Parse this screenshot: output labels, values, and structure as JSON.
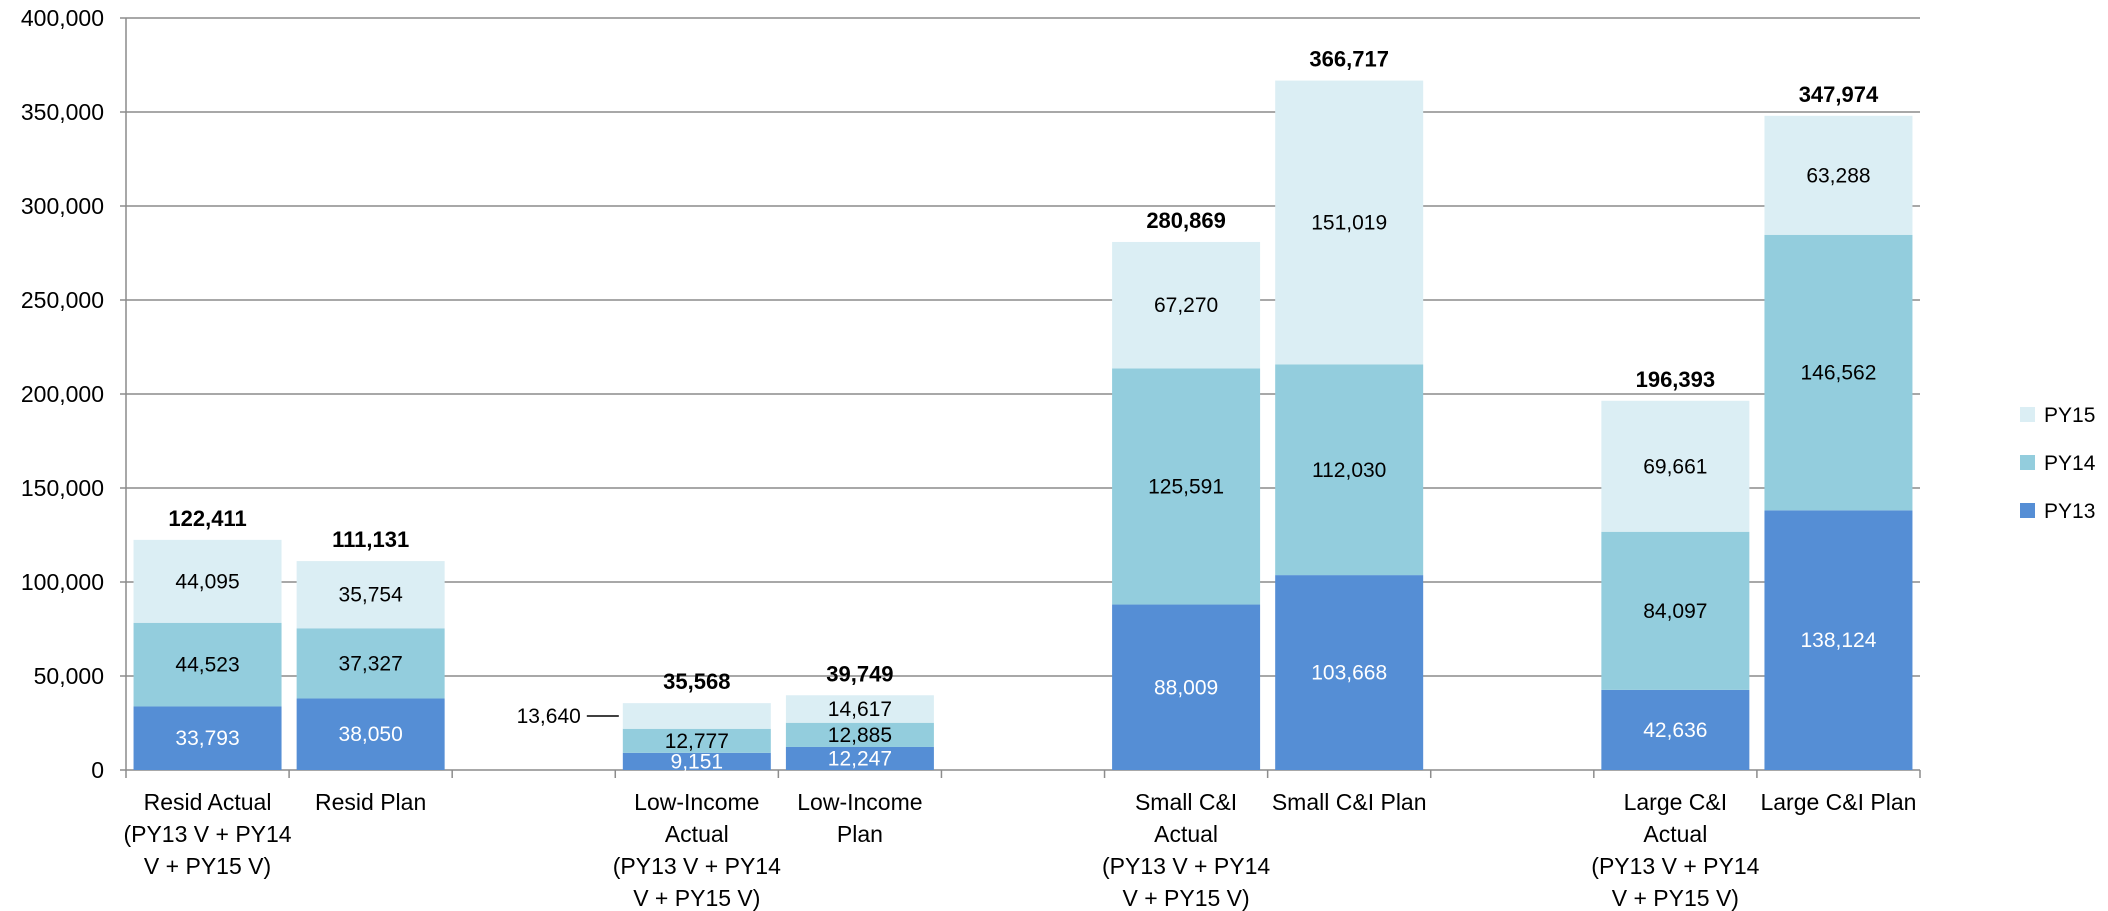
{
  "chart_data": {
    "type": "bar",
    "stacked": true,
    "title": "",
    "xlabel": "",
    "ylabel": "",
    "ylim": [
      0,
      400000
    ],
    "yticks": [
      0,
      50000,
      100000,
      150000,
      200000,
      250000,
      300000,
      350000,
      400000
    ],
    "ytick_labels": [
      "0",
      "50,000",
      "100,000",
      "150,000",
      "200,000",
      "250,000",
      "300,000",
      "350,000",
      "400,000"
    ],
    "grid": true,
    "legend_position": "right",
    "categories": [
      {
        "lines": [
          "Resid Actual",
          "(PY13 V + PY14",
          "V + PY15 V)"
        ]
      },
      {
        "lines": [
          "Resid Plan"
        ]
      },
      {
        "lines": [
          ""
        ]
      },
      {
        "lines": [
          "Low-Income",
          "Actual",
          "(PY13 V + PY14",
          "V + PY15 V)"
        ]
      },
      {
        "lines": [
          "Low-Income",
          "Plan"
        ]
      },
      {
        "lines": [
          ""
        ]
      },
      {
        "lines": [
          "Small C&I",
          "Actual",
          "(PY13 V + PY14",
          "V + PY15 V)"
        ]
      },
      {
        "lines": [
          "Small C&I Plan"
        ]
      },
      {
        "lines": [
          ""
        ]
      },
      {
        "lines": [
          "Large C&I",
          "Actual",
          "(PY13 V + PY14",
          "V + PY15 V)"
        ]
      },
      {
        "lines": [
          "Large C&I Plan"
        ]
      }
    ],
    "series": [
      {
        "name": "PY13",
        "color": "#558ed5",
        "label_color": "#ffffff",
        "values": [
          33793,
          38050,
          null,
          9151,
          12247,
          null,
          88009,
          103668,
          null,
          42636,
          138124
        ],
        "labels": [
          "33,793",
          "38,050",
          "",
          "9,151",
          "12,247",
          "",
          "88,009",
          "103,668",
          "",
          "42,636",
          "138,124"
        ]
      },
      {
        "name": "PY14",
        "color": "#93cddd",
        "label_color": "#000000",
        "values": [
          44523,
          37327,
          null,
          12777,
          12885,
          null,
          125591,
          112030,
          null,
          84097,
          146562
        ],
        "labels": [
          "44,523",
          "37,327",
          "",
          "12,777",
          "12,885",
          "",
          "125,591",
          "112,030",
          "",
          "84,097",
          "146,562"
        ]
      },
      {
        "name": "PY15",
        "color": "#dbeef4",
        "label_color": "#000000",
        "values": [
          44095,
          35754,
          null,
          13640,
          14617,
          null,
          67270,
          151019,
          null,
          69661,
          63288
        ],
        "labels": [
          "44,095",
          "35,754",
          "",
          "13,640",
          "14,617",
          "",
          "67,270",
          "151,019",
          "",
          "69,661",
          "63,288"
        ]
      }
    ],
    "totals": [
      "122,411",
      "111,131",
      "",
      "35,568",
      "39,749",
      "",
      "280,869",
      "366,717",
      "",
      "196,393",
      "347,974"
    ],
    "callout": {
      "category_index": 3,
      "series_index": 2
    }
  }
}
